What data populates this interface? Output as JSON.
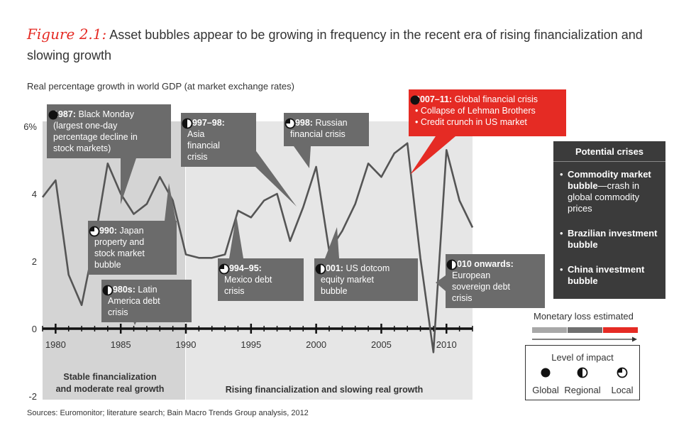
{
  "title": {
    "figure": "Figure 2.1:",
    "text": "Asset bubbles appear to be growing in frequency in the recent era of rising financialization and slowing growth"
  },
  "source": "Sources: Euromonitor; literature search; Bain Macro Trends Group analysis, 2012",
  "chart_data": {
    "type": "line",
    "ylabel": "Real percentage growth in world GDP (at market exchange rates)",
    "x": [
      1979,
      1980,
      1981,
      1982,
      1983,
      1984,
      1985,
      1986,
      1987,
      1988,
      1989,
      1990,
      1991,
      1992,
      1993,
      1994,
      1995,
      1996,
      1997,
      1998,
      1999,
      2000,
      2001,
      2002,
      2003,
      2004,
      2005,
      2006,
      2007,
      2008,
      2009,
      2010,
      2011,
      2012
    ],
    "values": [
      3.9,
      4.4,
      1.6,
      0.7,
      2.6,
      4.9,
      4.0,
      3.4,
      3.7,
      4.5,
      3.8,
      2.2,
      2.1,
      2.1,
      2.2,
      3.5,
      3.3,
      3.8,
      4.0,
      2.6,
      3.6,
      4.8,
      2.3,
      2.9,
      3.7,
      4.9,
      4.5,
      5.2,
      5.5,
      2.1,
      -0.7,
      5.3,
      3.8,
      3.0
    ],
    "xlim": [
      1979,
      2012
    ],
    "ylim": [
      -2,
      6
    ],
    "yticks": [
      {
        "v": 6,
        "label": "6%"
      },
      {
        "v": 4,
        "label": "4"
      },
      {
        "v": 2,
        "label": "2"
      },
      {
        "v": 0,
        "label": "0"
      },
      {
        "v": -2,
        "label": "-2"
      }
    ],
    "xticks": [
      1980,
      1985,
      1990,
      1995,
      2000,
      2005,
      2010
    ],
    "eras": [
      {
        "label": "Stable financialization and moderate real growth",
        "from": 1979,
        "to": 1990,
        "color": "#d4d4d4"
      },
      {
        "label": "Rising financialization and slowing real growth",
        "from": 1990,
        "to": 2012,
        "color": "#e6e6e6"
      }
    ]
  },
  "callouts": [
    {
      "id": "c1987",
      "title": "1987:",
      "text": " Black Monday (largest one-day percentage decline in stock markets)",
      "impact": "global",
      "style": "dark"
    },
    {
      "id": "c1997",
      "title": "1997–98:",
      "text": " Asia financial crisis",
      "impact": "regional",
      "style": "dark"
    },
    {
      "id": "c1998",
      "title": "1998:",
      "text": " Russian financial crisis",
      "impact": "local",
      "style": "dark"
    },
    {
      "id": "c2007",
      "title": "2007–11:",
      "text": " Global financial crisis",
      "bullets": [
        "Collapse of  Lehman Brothers",
        "Credit crunch in US market"
      ],
      "impact": "global",
      "style": "red"
    },
    {
      "id": "c1990",
      "title": "1990:",
      "text": " Japan property and stock market bubble",
      "impact": "local",
      "style": "dark"
    },
    {
      "id": "c1980s",
      "title": "1980s:",
      "text": " Latin America debt crisis",
      "impact": "regional",
      "style": "dark"
    },
    {
      "id": "c1994",
      "title": "1994–95:",
      "text": " Mexico debt crisis",
      "impact": "local",
      "style": "dark"
    },
    {
      "id": "c2001",
      "title": "2001:",
      "text": " US dotcom equity market bubble",
      "impact": "regional",
      "style": "dark"
    },
    {
      "id": "c2010",
      "title": "2010 onwards:",
      "text": " European sovereign debt crisis",
      "impact": "regional",
      "style": "dark"
    }
  ],
  "potential": {
    "heading": "Potential crises",
    "items": [
      {
        "bold": "Commodity market bubble",
        "rest": "—crash in global commodity prices"
      },
      {
        "bold": "Brazilian investment  bubble",
        "rest": ""
      },
      {
        "bold": "China investment bubble",
        "rest": ""
      }
    ]
  },
  "monetary": {
    "label": "Monetary loss estimated",
    "colors": [
      "#a8a8a8",
      "#707070",
      "#e52b24"
    ]
  },
  "legend": {
    "title": "Level of impact",
    "items": [
      {
        "key": "global",
        "label": "Global"
      },
      {
        "key": "regional",
        "label": "Regional"
      },
      {
        "key": "local",
        "label": "Local"
      }
    ]
  },
  "colors": {
    "line": "#555555",
    "dark_box": "#6b6b6b",
    "red_box": "#e52b24",
    "potential_box": "#3b3b3b"
  }
}
